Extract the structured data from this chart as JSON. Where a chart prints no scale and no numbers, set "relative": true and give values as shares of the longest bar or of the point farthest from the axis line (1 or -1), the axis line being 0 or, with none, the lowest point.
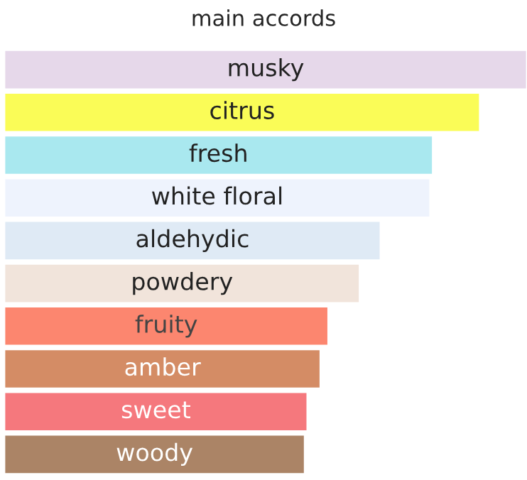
{
  "chart_data": {
    "type": "bar",
    "orientation": "horizontal",
    "relative": true,
    "title": "main accords",
    "categories": [
      "musky",
      "citrus",
      "fresh",
      "white floral",
      "aldehydic",
      "powdery",
      "fruity",
      "amber",
      "sweet",
      "woody"
    ],
    "values": [
      1.0,
      0.91,
      0.82,
      0.815,
      0.72,
      0.68,
      0.62,
      0.605,
      0.58,
      0.575
    ],
    "colors": [
      "#e6d8ea",
      "#fafc57",
      "#a9e8ef",
      "#eef3fd",
      "#dfeaf5",
      "#f1e4db",
      "#fc866f",
      "#d48c65",
      "#f5787d",
      "#ab8466"
    ],
    "legend": false
  }
}
